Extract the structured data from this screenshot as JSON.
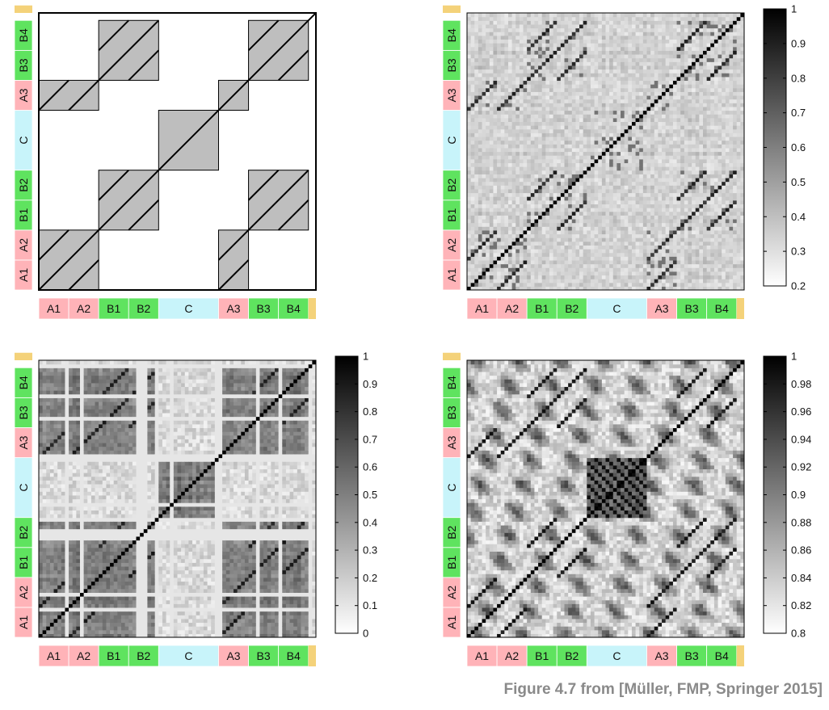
{
  "figure": {
    "caption": "Figure 4.7 from [Müller, FMP, Springer 2015]",
    "colors": {
      "A": "#ffb3b8",
      "B": "#5fe35f",
      "C": "#c8f4fa",
      "end": "#f4d27a",
      "block": "#bebebe"
    }
  },
  "chart_data": [
    {
      "type": "heatmap",
      "title": "",
      "segments": [
        {
          "label": "A1",
          "kind": "A",
          "start": 0,
          "end": 1
        },
        {
          "label": "A2",
          "kind": "A",
          "start": 1,
          "end": 2
        },
        {
          "label": "B1",
          "kind": "B",
          "start": 2,
          "end": 3
        },
        {
          "label": "B2",
          "kind": "B",
          "start": 3,
          "end": 4
        },
        {
          "label": "C",
          "kind": "C",
          "start": 4,
          "end": 6
        },
        {
          "label": "A3",
          "kind": "A",
          "start": 6,
          "end": 7
        },
        {
          "label": "B3",
          "kind": "B",
          "start": 7,
          "end": 8
        },
        {
          "label": "B4",
          "kind": "B",
          "start": 8,
          "end": 9
        }
      ],
      "content": "idealized structure blocks and diagonal path segments",
      "colorbar": null
    },
    {
      "type": "heatmap",
      "title": "",
      "segments": [
        {
          "label": "A1",
          "kind": "A"
        },
        {
          "label": "A2",
          "kind": "A"
        },
        {
          "label": "B1",
          "kind": "B"
        },
        {
          "label": "B2",
          "kind": "B"
        },
        {
          "label": "C",
          "kind": "C"
        },
        {
          "label": "A3",
          "kind": "A"
        },
        {
          "label": "B3",
          "kind": "B"
        },
        {
          "label": "B4",
          "kind": "B"
        }
      ],
      "colorbar": {
        "min": 0.2,
        "max": 1,
        "ticks": [
          "0.2",
          "0.3",
          "0.4",
          "0.5",
          "0.6",
          "0.7",
          "0.8",
          "0.9",
          "1"
        ]
      }
    },
    {
      "type": "heatmap",
      "title": "",
      "segments": [
        {
          "label": "A1",
          "kind": "A"
        },
        {
          "label": "A2",
          "kind": "A"
        },
        {
          "label": "B1",
          "kind": "B"
        },
        {
          "label": "B2",
          "kind": "B"
        },
        {
          "label": "C",
          "kind": "C"
        },
        {
          "label": "A3",
          "kind": "A"
        },
        {
          "label": "B3",
          "kind": "B"
        },
        {
          "label": "B4",
          "kind": "B"
        }
      ],
      "colorbar": {
        "min": 0,
        "max": 1,
        "ticks": [
          "0",
          "0.1",
          "0.2",
          "0.3",
          "0.4",
          "0.5",
          "0.6",
          "0.7",
          "0.8",
          "0.9",
          "1"
        ]
      }
    },
    {
      "type": "heatmap",
      "title": "",
      "segments": [
        {
          "label": "A1",
          "kind": "A"
        },
        {
          "label": "A2",
          "kind": "A"
        },
        {
          "label": "B1",
          "kind": "B"
        },
        {
          "label": "B2",
          "kind": "B"
        },
        {
          "label": "C",
          "kind": "C"
        },
        {
          "label": "A3",
          "kind": "A"
        },
        {
          "label": "B3",
          "kind": "B"
        },
        {
          "label": "B4",
          "kind": "B"
        }
      ],
      "colorbar": {
        "min": 0.8,
        "max": 1,
        "ticks": [
          "0.8",
          "0.82",
          "0.84",
          "0.86",
          "0.88",
          "0.9",
          "0.92",
          "0.94",
          "0.96",
          "0.98",
          "1"
        ]
      }
    }
  ]
}
